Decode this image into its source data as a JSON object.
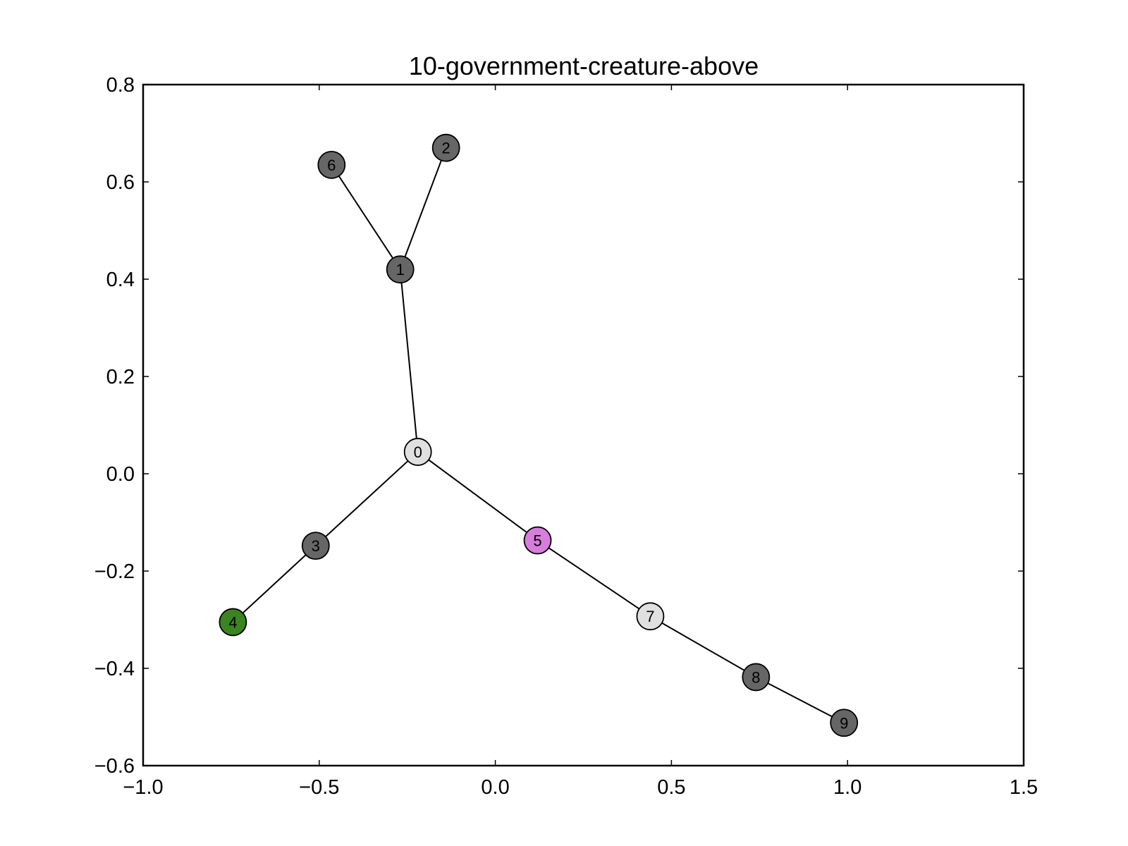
{
  "chart_data": {
    "type": "network",
    "title": "10-government-creature-above",
    "xlabel": "",
    "ylabel": "",
    "xlim": [
      -1.0,
      1.5
    ],
    "ylim": [
      -0.6,
      0.8
    ],
    "x_ticks": [
      -1.0,
      -0.5,
      0.0,
      0.5,
      1.0,
      1.5
    ],
    "x_tick_labels": [
      "−1.0",
      "−0.5",
      "0.0",
      "0.5",
      "1.0",
      "1.5"
    ],
    "y_ticks": [
      -0.6,
      -0.4,
      -0.2,
      0.0,
      0.2,
      0.4,
      0.6,
      0.8
    ],
    "y_tick_labels": [
      "−0.6",
      "−0.4",
      "−0.2",
      "0.0",
      "0.2",
      "0.4",
      "0.6",
      "0.8"
    ],
    "grid": false,
    "nodes": [
      {
        "id": "0",
        "x": -0.22,
        "y": 0.045,
        "color": "#e0e0e0"
      },
      {
        "id": "1",
        "x": -0.27,
        "y": 0.42,
        "color": "#666666"
      },
      {
        "id": "2",
        "x": -0.14,
        "y": 0.67,
        "color": "#666666"
      },
      {
        "id": "3",
        "x": -0.51,
        "y": -0.148,
        "color": "#666666"
      },
      {
        "id": "4",
        "x": -0.745,
        "y": -0.305,
        "color": "#3a8522"
      },
      {
        "id": "5",
        "x": 0.12,
        "y": -0.137,
        "color": "#d77ddc"
      },
      {
        "id": "6",
        "x": -0.465,
        "y": 0.635,
        "color": "#666666"
      },
      {
        "id": "7",
        "x": 0.44,
        "y": -0.293,
        "color": "#e0e0e0"
      },
      {
        "id": "8",
        "x": 0.74,
        "y": -0.418,
        "color": "#666666"
      },
      {
        "id": "9",
        "x": 0.99,
        "y": -0.512,
        "color": "#666666"
      }
    ],
    "edges": [
      [
        "0",
        "1"
      ],
      [
        "1",
        "6"
      ],
      [
        "1",
        "2"
      ],
      [
        "0",
        "3"
      ],
      [
        "3",
        "4"
      ],
      [
        "0",
        "5"
      ],
      [
        "5",
        "7"
      ],
      [
        "7",
        "8"
      ],
      [
        "8",
        "9"
      ]
    ]
  }
}
